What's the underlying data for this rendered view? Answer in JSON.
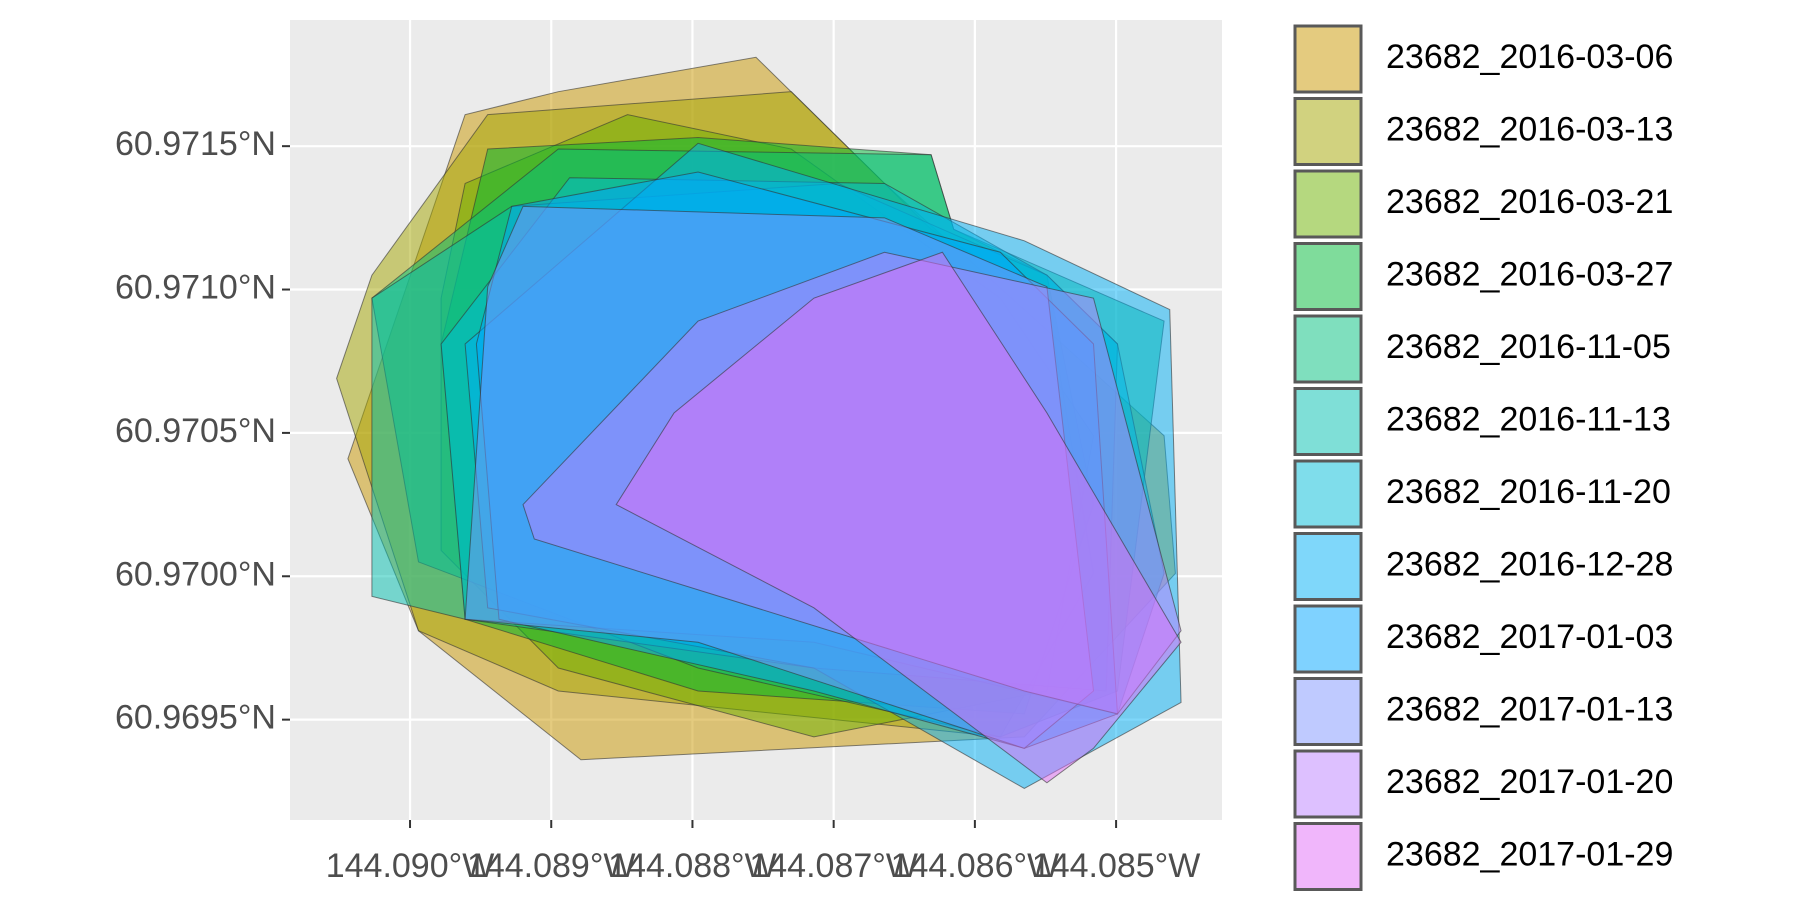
{
  "chart_data": {
    "type": "polygon-map",
    "xlim": [
      -144.09085,
      -144.08425
    ],
    "ylim": [
      60.96915,
      60.97194
    ],
    "xticks": [
      {
        "value": -144.09,
        "label": "144.090°W"
      },
      {
        "value": -144.089,
        "label": "144.089°W"
      },
      {
        "value": -144.088,
        "label": "144.088°W"
      },
      {
        "value": -144.087,
        "label": "144.087°W"
      },
      {
        "value": -144.086,
        "label": "144.086°W"
      },
      {
        "value": -144.085,
        "label": "144.085°W"
      }
    ],
    "yticks": [
      {
        "value": 60.9715,
        "label": "60.9715°N"
      },
      {
        "value": 60.971,
        "label": "60.9710°N"
      },
      {
        "value": 60.9705,
        "label": "60.9705°N"
      },
      {
        "value": 60.97,
        "label": "60.9700°N"
      },
      {
        "value": 60.9695,
        "label": "60.9695°N"
      }
    ],
    "grid": true,
    "opacity": 0.5,
    "legend": "right",
    "series": [
      {
        "name": "23682_2016-03-06",
        "color": "#C99800",
        "polygon": [
          [
            -144.08895,
            60.97169
          ],
          [
            -144.08755,
            60.97181
          ],
          [
            -144.08664,
            60.97137
          ],
          [
            -144.08466,
            60.97049
          ],
          [
            -144.08458,
            60.97001
          ],
          [
            -144.08565,
            60.96944
          ],
          [
            -144.08879,
            60.96936
          ],
          [
            -144.08994,
            60.96981
          ],
          [
            -144.09044,
            60.97041
          ],
          [
            -144.08961,
            60.97161
          ]
        ]
      },
      {
        "name": "23682_2016-03-13",
        "color": "#A3A500",
        "polygon": [
          [
            -144.08945,
            60.97161
          ],
          [
            -144.0873,
            60.97169
          ],
          [
            -144.08631,
            60.97121
          ],
          [
            -144.08549,
            60.97097
          ],
          [
            -144.08516,
            60.97001
          ],
          [
            -144.08582,
            60.96944
          ],
          [
            -144.08895,
            60.9696
          ],
          [
            -144.08994,
            60.96981
          ],
          [
            -144.09052,
            60.97069
          ],
          [
            -144.09027,
            60.97105
          ]
        ]
      },
      {
        "name": "23682_2016-03-21",
        "color": "#6BB100",
        "polygon": [
          [
            -144.08961,
            60.97137
          ],
          [
            -144.08846,
            60.97161
          ],
          [
            -144.0873,
            60.97149
          ],
          [
            -144.08582,
            60.97097
          ],
          [
            -144.08516,
            60.97049
          ],
          [
            -144.08549,
            60.9696
          ],
          [
            -144.08714,
            60.96944
          ],
          [
            -144.08895,
            60.96968
          ],
          [
            -144.08978,
            60.97009
          ],
          [
            -144.08978,
            60.97097
          ]
        ]
      },
      {
        "name": "23682_2016-03-27",
        "color": "#00BA38",
        "polygon": [
          [
            -144.08945,
            60.97149
          ],
          [
            -144.08796,
            60.97153
          ],
          [
            -144.08631,
            60.97147
          ],
          [
            -144.08615,
            60.97121
          ],
          [
            -144.08549,
            60.97105
          ],
          [
            -144.08516,
            60.97025
          ],
          [
            -144.08565,
            60.96952
          ],
          [
            -144.08796,
            60.9696
          ],
          [
            -144.08961,
            60.96985
          ],
          [
            -144.08978,
            60.97081
          ]
        ]
      },
      {
        "name": "23682_2016-11-05",
        "color": "#00BF7D",
        "polygon": [
          [
            -144.08895,
            60.97149
          ],
          [
            -144.08631,
            60.97147
          ],
          [
            -144.08615,
            60.97121
          ],
          [
            -144.08466,
            60.97089
          ],
          [
            -144.08499,
            60.9696
          ],
          [
            -144.08582,
            60.96944
          ],
          [
            -144.08796,
            60.96968
          ],
          [
            -144.08994,
            60.97005
          ],
          [
            -144.09027,
            60.97097
          ]
        ]
      },
      {
        "name": "23682_2016-11-13",
        "color": "#00C0AF",
        "polygon": [
          [
            -144.08928,
            60.97129
          ],
          [
            -144.08697,
            60.97137
          ],
          [
            -144.08549,
            60.97105
          ],
          [
            -144.08499,
            60.97081
          ],
          [
            -144.08507,
            60.9696
          ],
          [
            -144.08714,
            60.96968
          ],
          [
            -144.08961,
            60.96985
          ],
          [
            -144.09027,
            60.96993
          ],
          [
            -144.09027,
            60.97097
          ]
        ]
      },
      {
        "name": "23682_2016-11-20",
        "color": "#00BCD8",
        "polygon": [
          [
            -144.08887,
            60.97139
          ],
          [
            -144.08664,
            60.97137
          ],
          [
            -144.08549,
            60.97105
          ],
          [
            -144.08499,
            60.97081
          ],
          [
            -144.08466,
            60.97001
          ],
          [
            -144.08499,
            60.96952
          ],
          [
            -144.08714,
            60.96977
          ],
          [
            -144.08961,
            60.96985
          ],
          [
            -144.08978,
            60.97081
          ]
        ]
      },
      {
        "name": "23682_2016-12-28",
        "color": "#00B0F6",
        "polygon": [
          [
            -144.08796,
            60.97151
          ],
          [
            -144.08565,
            60.97117
          ],
          [
            -144.08462,
            60.97093
          ],
          [
            -144.08454,
            60.96956
          ],
          [
            -144.08565,
            60.96926
          ],
          [
            -144.08714,
            60.96968
          ],
          [
            -144.08945,
            60.96989
          ],
          [
            -144.08961,
            60.97081
          ]
        ]
      },
      {
        "name": "23682_2017-01-03",
        "color": "#00A5FF",
        "polygon": [
          [
            -144.08928,
            60.97129
          ],
          [
            -144.08796,
            60.97141
          ],
          [
            -144.08582,
            60.97113
          ],
          [
            -144.08516,
            60.97081
          ],
          [
            -144.08499,
            60.96952
          ],
          [
            -144.08565,
            60.9694
          ],
          [
            -144.08714,
            60.9696
          ],
          [
            -144.08937,
            60.96985
          ],
          [
            -144.08953,
            60.97081
          ]
        ]
      },
      {
        "name": "23682_2017-01-13",
        "color": "#7F96FF",
        "polygon": [
          [
            -144.0892,
            60.97129
          ],
          [
            -144.08664,
            60.97125
          ],
          [
            -144.08549,
            60.97101
          ],
          [
            -144.08516,
            60.9696
          ],
          [
            -144.08565,
            60.9694
          ],
          [
            -144.08796,
            60.96977
          ],
          [
            -144.08961,
            60.96985
          ],
          [
            -144.08945,
            60.97101
          ]
        ]
      },
      {
        "name": "23682_2017-01-20",
        "color": "#BC81FF",
        "polygon": [
          [
            -144.08796,
            60.97089
          ],
          [
            -144.08664,
            60.97113
          ],
          [
            -144.08516,
            60.97097
          ],
          [
            -144.08454,
            60.96981
          ],
          [
            -144.08499,
            60.96952
          ],
          [
            -144.08565,
            60.9696
          ],
          [
            -144.08912,
            60.97013
          ],
          [
            -144.0892,
            60.97025
          ]
        ]
      },
      {
        "name": "23682_2017-01-29",
        "color": "#E26EF7",
        "polygon": [
          [
            -144.08813,
            60.97057
          ],
          [
            -144.08714,
            60.97097
          ],
          [
            -144.08623,
            60.97113
          ],
          [
            -144.08549,
            60.97057
          ],
          [
            -144.08454,
            60.96977
          ],
          [
            -144.08516,
            60.9694
          ],
          [
            -144.08549,
            60.96928
          ],
          [
            -144.08714,
            60.96989
          ],
          [
            -144.08854,
            60.97025
          ]
        ]
      }
    ]
  }
}
